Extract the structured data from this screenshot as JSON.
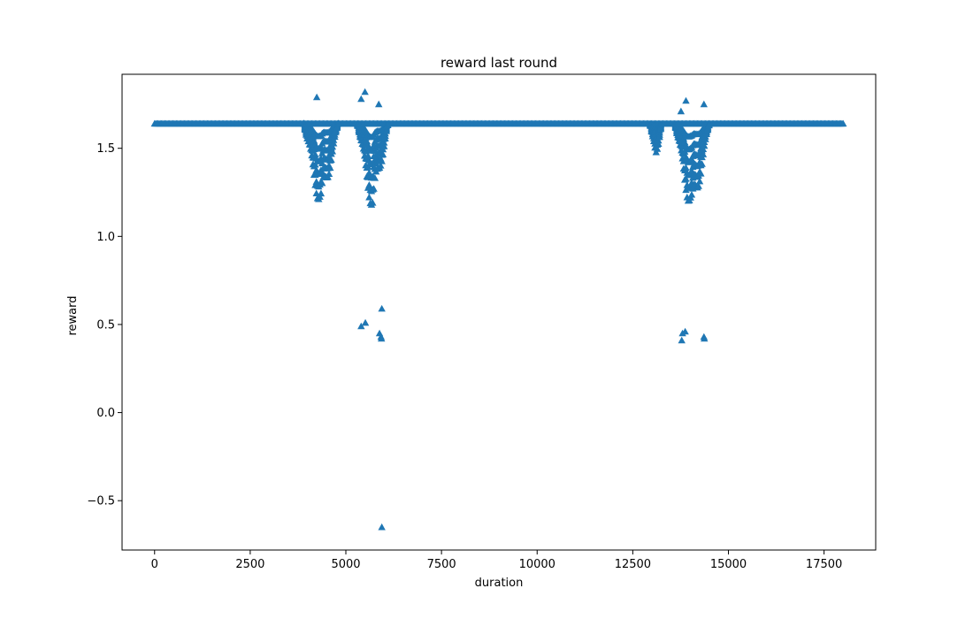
{
  "chart_data": {
    "type": "scatter",
    "title": "reward last round",
    "xlabel": "duration",
    "ylabel": "reward",
    "xlim": [
      -850,
      18850
    ],
    "ylim": [
      -0.78,
      1.92
    ],
    "x_ticks": [
      0,
      2500,
      5000,
      7500,
      10000,
      12500,
      15000,
      17500
    ],
    "x_tick_labels": [
      "0",
      "2500",
      "5000",
      "7500",
      "10000",
      "12500",
      "15000",
      "17500"
    ],
    "y_ticks": [
      -0.5,
      0.0,
      0.5,
      1.0,
      1.5
    ],
    "y_tick_labels": [
      "−0.5",
      "0.0",
      "0.5",
      "1.0",
      "1.5"
    ],
    "grid": false,
    "marker": "triangle-up",
    "color": "#1f77b4",
    "series": [
      {
        "values_note": "dense band of points along baseline",
        "x_range": [
          0,
          18000
        ],
        "baseline": 1.64,
        "dips": [
          {
            "x": [
              3900,
              4800
            ],
            "min": 1.1
          },
          {
            "x": [
              5300,
              6100
            ],
            "min": 1.1
          },
          {
            "x": [
              12950,
              13250
            ],
            "min": 1.41
          },
          {
            "x": [
              13600,
              14500
            ],
            "min": 1.05
          }
        ],
        "outliers": [
          [
            4240,
            1.79
          ],
          [
            5400,
            1.78
          ],
          [
            5500,
            1.82
          ],
          [
            5860,
            1.75
          ],
          [
            13760,
            1.71
          ],
          [
            13890,
            1.77
          ],
          [
            14360,
            1.75
          ],
          [
            5400,
            0.49
          ],
          [
            5510,
            0.51
          ],
          [
            5880,
            0.45
          ],
          [
            5920,
            0.43
          ],
          [
            5940,
            0.59
          ],
          [
            5930,
            0.42
          ],
          [
            5940,
            -0.65
          ],
          [
            13780,
            0.41
          ],
          [
            13800,
            0.45
          ],
          [
            13870,
            0.46
          ],
          [
            14360,
            0.43
          ],
          [
            14370,
            0.42
          ]
        ]
      }
    ]
  }
}
